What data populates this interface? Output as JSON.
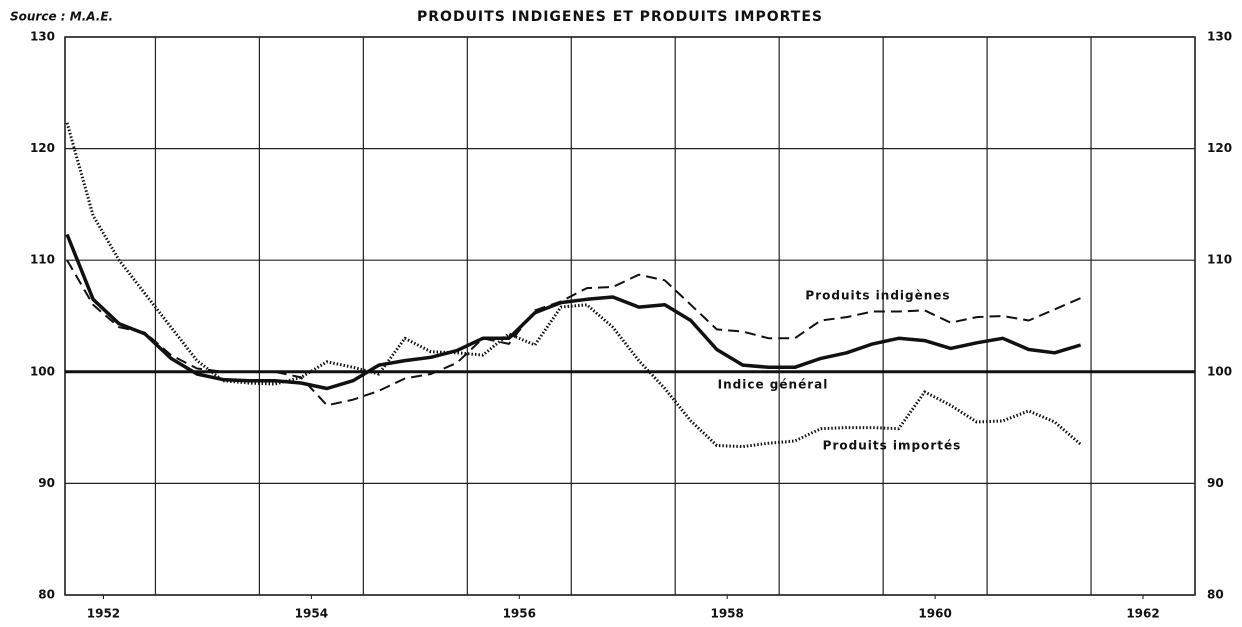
{
  "chart_data": {
    "type": "line",
    "title": "PRODUITS INDIGENES ET PRODUITS IMPORTES",
    "source": "Source : M.A.E.",
    "x": [
      1951.65,
      1951.9,
      1952.15,
      1952.4,
      1952.65,
      1952.9,
      1953.15,
      1953.4,
      1953.65,
      1953.9,
      1954.15,
      1954.4,
      1954.65,
      1954.9,
      1955.15,
      1955.4,
      1955.65,
      1955.9,
      1956.15,
      1956.4,
      1956.65,
      1956.9,
      1957.15,
      1957.4,
      1957.65,
      1957.9,
      1958.15,
      1958.4,
      1958.65,
      1958.9,
      1959.15,
      1959.4,
      1959.65,
      1959.9,
      1960.15,
      1960.4,
      1960.65,
      1960.9,
      1961.15,
      1961.4
    ],
    "series": [
      {
        "name": "Indice général",
        "color": "#111111",
        "line_style": "solid",
        "values": [
          112.3,
          106.5,
          104.3,
          103.4,
          101.2,
          99.8,
          99.3,
          99.2,
          99.2,
          99.0,
          98.5,
          99.2,
          100.6,
          101.0,
          101.3,
          101.9,
          103.0,
          103.0,
          105.3,
          106.2,
          106.5,
          106.7,
          105.8,
          106.0,
          104.6,
          102.0,
          100.6,
          100.4,
          100.4,
          101.2,
          101.7,
          102.5,
          103.0,
          102.8,
          102.1,
          102.6,
          103.0,
          102.0,
          101.7,
          102.4
        ]
      },
      {
        "name": "Produits indigènes",
        "color": "#111111",
        "line_style": "dashed",
        "values": [
          110.0,
          106.0,
          104.0,
          103.5,
          101.5,
          100.3,
          100.0,
          100.0,
          100.0,
          99.5,
          97.0,
          97.5,
          98.3,
          99.4,
          99.8,
          100.8,
          103.0,
          102.5,
          105.5,
          106.3,
          107.5,
          107.6,
          108.7,
          108.2,
          106.0,
          103.8,
          103.6,
          103.0,
          103.0,
          104.6,
          104.9,
          105.4,
          105.4,
          105.5,
          104.4,
          104.9,
          105.0,
          104.6,
          105.6,
          106.6
        ]
      },
      {
        "name": "Produits importés",
        "color": "#111111",
        "line_style": "dotted",
        "values": [
          122.3,
          114.0,
          110.0,
          107.0,
          104.0,
          101.0,
          99.2,
          99.0,
          98.9,
          99.5,
          100.9,
          100.4,
          99.8,
          103.0,
          101.8,
          101.7,
          101.5,
          103.4,
          102.4,
          105.8,
          106.0,
          104.0,
          101.0,
          98.5,
          95.6,
          93.4,
          93.3,
          93.6,
          93.8,
          94.9,
          95.0,
          95.0,
          94.9,
          98.2,
          97.0,
          95.5,
          95.6,
          96.5,
          95.5,
          93.5
        ]
      }
    ],
    "xlim": [
      1951.63,
      1962.5
    ],
    "xticks": [
      1952,
      1954,
      1956,
      1958,
      1960,
      1962
    ],
    "xgrid": [
      1952.5,
      1953.5,
      1954.5,
      1955.5,
      1956.5,
      1957.5,
      1958.5,
      1959.5,
      1960.5,
      1961.5
    ],
    "ylim": [
      80,
      130
    ],
    "yticks": [
      80,
      90,
      100,
      110,
      120,
      130
    ],
    "reference_line": 100,
    "grid": true
  }
}
